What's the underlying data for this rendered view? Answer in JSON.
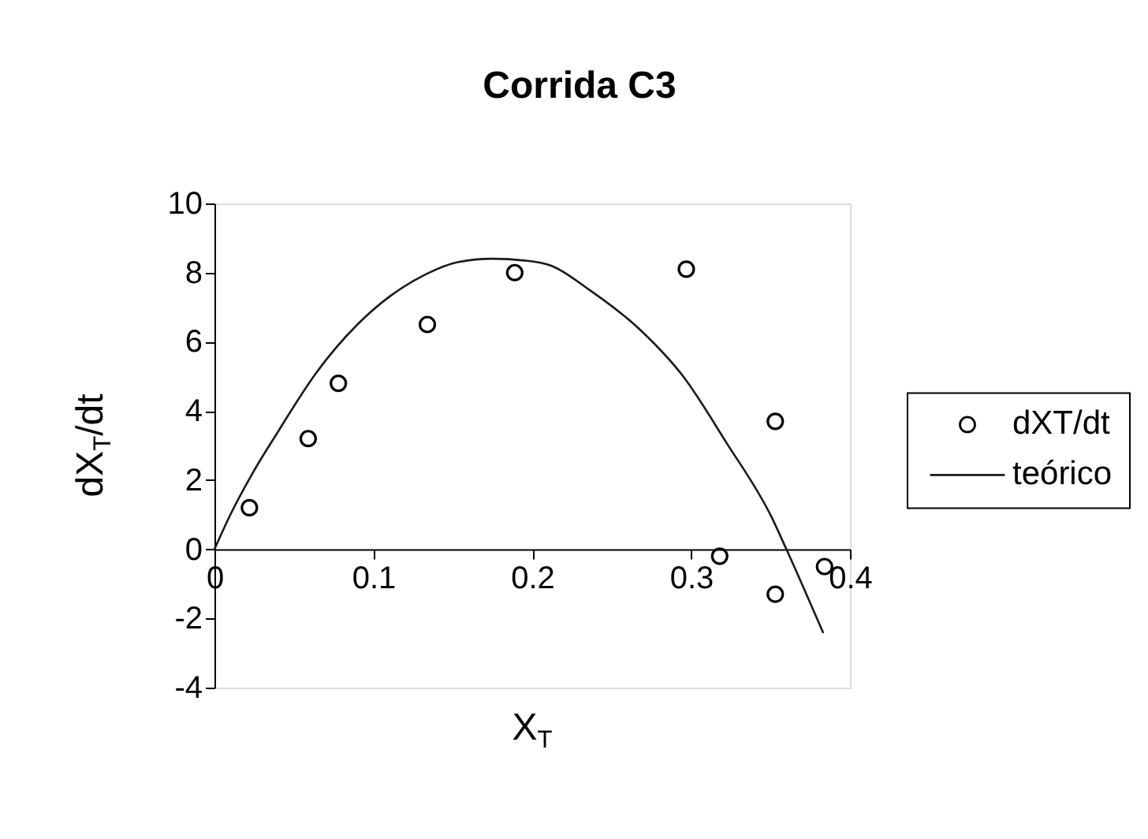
{
  "chart_data": {
    "type": "scatter",
    "title": "Corrida C3",
    "xlabel": "X$_{T}$",
    "ylabel": "dX$_{T}$/dt",
    "xlim": [
      0,
      0.4
    ],
    "xticks": [
      0,
      0.1,
      0.2,
      0.3,
      0.4
    ],
    "ylim": [
      -4,
      10
    ],
    "yticks": [
      -4,
      -2,
      0,
      2,
      4,
      6,
      8,
      10
    ],
    "grid": false,
    "legend": "right",
    "series": [
      {
        "name": "dXT/dt",
        "marker": "circle",
        "color": "#000000",
        "x": [
          0.022,
          0.059,
          0.078,
          0.134,
          0.189,
          0.297,
          0.318,
          0.353,
          0.353,
          0.384
        ],
        "values": [
          1.2,
          3.2,
          4.8,
          6.5,
          8.0,
          8.1,
          -0.2,
          3.7,
          -1.3,
          -0.5
        ]
      },
      {
        "name": "teórico",
        "type": "line",
        "line_style": "solid",
        "color": "#1a1a1a",
        "x": [
          0,
          0.01,
          0.024,
          0.04,
          0.064,
          0.09,
          0.11,
          0.133,
          0.153,
          0.175,
          0.195,
          0.212,
          0.236,
          0.269,
          0.295,
          0.322,
          0.351,
          0.36,
          0.383
        ],
        "values": [
          0,
          1.0,
          2.2,
          3.4,
          5.1,
          6.5,
          7.3,
          7.95,
          8.3,
          8.4,
          8.35,
          8.2,
          7.5,
          6.3,
          5.0,
          3.1,
          0.9,
          0.0,
          -2.4
        ]
      }
    ]
  }
}
